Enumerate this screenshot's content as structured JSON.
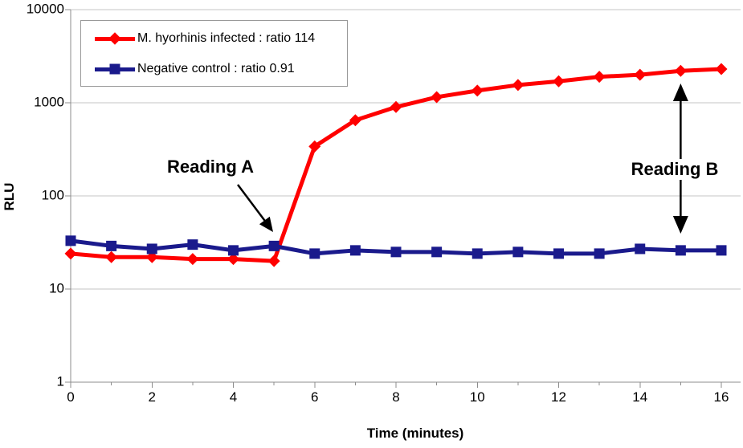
{
  "chart_data": {
    "type": "line",
    "title": "",
    "x": [
      0,
      1,
      2,
      3,
      4,
      5,
      6,
      7,
      8,
      9,
      10,
      11,
      12,
      13,
      14,
      15,
      16
    ],
    "series": [
      {
        "name": "M. hyorhinis infected : ratio 114",
        "color": "#ff0000",
        "marker": "diamond",
        "values": [
          24,
          22,
          22,
          21,
          21,
          20,
          340,
          650,
          900,
          1150,
          1350,
          1550,
          1700,
          1900,
          2000,
          2200,
          2300
        ]
      },
      {
        "name": "Negative control : ratio 0.91",
        "color": "#1a1a8c",
        "marker": "square",
        "values": [
          33,
          29,
          27,
          30,
          26,
          29,
          24,
          26,
          25,
          25,
          24,
          25,
          24,
          24,
          27,
          26,
          26
        ]
      }
    ],
    "xlabel": "Time (minutes)",
    "ylabel": "RLU",
    "xlim": [
      0,
      16
    ],
    "x_ticks": [
      0,
      2,
      4,
      6,
      8,
      10,
      12,
      14,
      16
    ],
    "x_minor_tick_step": 1,
    "y_scale": "log",
    "ylim": [
      1,
      10000
    ],
    "y_ticks": [
      1,
      10,
      100,
      1000,
      10000
    ],
    "grid": "horizontal-decades",
    "legend_position": "top-left",
    "annotations": [
      {
        "text": "Reading A",
        "points_to": {
          "x": 5,
          "series": "Negative control"
        },
        "arrow": "diagonal-single"
      },
      {
        "text": "Reading B",
        "points_to": {
          "x": 15
        },
        "arrow": "vertical-double"
      }
    ]
  },
  "colors": {
    "series_infected": "#ff0000",
    "series_control": "#1a1a8c",
    "gridline": "#c4c4c4",
    "axis": "#8c8c8c",
    "annotation": "#000000",
    "background": "#ffffff"
  }
}
